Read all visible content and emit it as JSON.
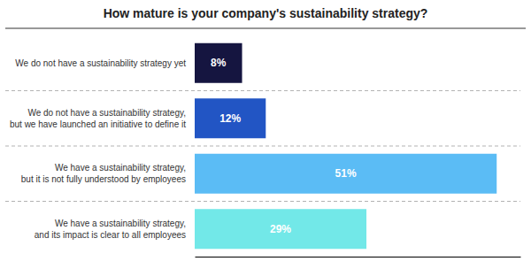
{
  "chart_data": {
    "type": "bar",
    "orientation": "horizontal",
    "title": "How mature is your company's sustainability strategy?",
    "categories": [
      "We do not have a sustainability strategy yet",
      "We do not have a sustainability strategy,\nbut we have launched an initiative to define it",
      "We have a sustainability strategy,\nbut it is not fully understood by employees",
      "We have a sustainability strategy,\nand its impact is clear to all employees"
    ],
    "values": [
      8,
      12,
      51,
      29
    ],
    "value_labels": [
      "8%",
      "12%",
      "51%",
      "29%"
    ],
    "colors": [
      "#151540",
      "#2255c4",
      "#5bbcf5",
      "#72e8e8"
    ],
    "xlim": [
      0,
      55
    ],
    "data_labels": true,
    "tick_labels": false
  }
}
